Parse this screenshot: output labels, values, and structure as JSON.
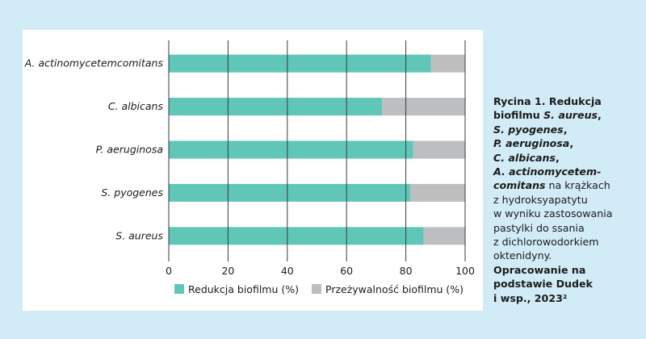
{
  "colors": {
    "background": "#d2ecf7",
    "panel": "#ffffff",
    "reduction": "#5fc6b8",
    "survival": "#bcbec0",
    "grid": "#3a3a3a"
  },
  "chart_data": {
    "type": "bar",
    "orientation": "horizontal",
    "stacked": true,
    "categories": [
      "A. actinomycetemcomitans",
      "C. albicans",
      "P. aeruginosa",
      "S. pyogenes",
      "S. aureus"
    ],
    "series": [
      {
        "name": "Redukcja biofilmu (%)",
        "color": "#5fc6b8",
        "values": [
          88.5,
          72,
          82.5,
          81.5,
          86
        ]
      },
      {
        "name": "Przeżywalność biofilmu (%)",
        "color": "#bcbec0",
        "values": [
          11.5,
          28,
          17.5,
          18.5,
          14
        ]
      }
    ],
    "xlim": [
      0,
      100
    ],
    "xticks": [
      0,
      20,
      40,
      60,
      80,
      100
    ],
    "grid": true,
    "legend_position": "bottom",
    "title": "",
    "xlabel": "",
    "ylabel": ""
  },
  "caption": {
    "line1": "Rycina 1. Redukcja",
    "line2_a": "biofilmu ",
    "line2_b": "S. aureus",
    "line2_c": ",",
    "line3_a": "S. pyogenes",
    "line3_b": ",",
    "line4_a": "P. aeruginosa",
    "line4_b": ",",
    "line5_a": "C. albicans",
    "line5_b": ",",
    "line6": "A. actinomycetem-",
    "line7_a": "comitans",
    "line7_b": " na krążkach",
    "line8": "z hydroksyapatytu",
    "line9": "w wyniku zastosowania",
    "line10": "pastylki do ssania",
    "line11": "z dichlorowodorkiem",
    "line12": "oktenidyny.",
    "line13": "Opracowanie na",
    "line14": "podstawie Dudek",
    "line15": "i wsp., 2023²"
  }
}
